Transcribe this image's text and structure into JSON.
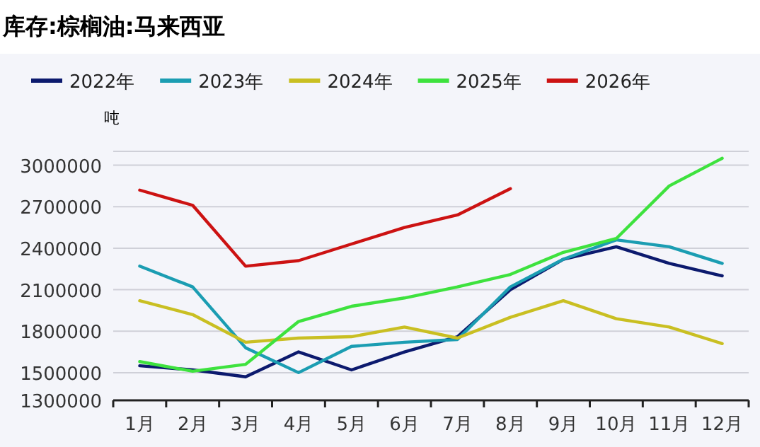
{
  "chart_data": {
    "type": "line",
    "title": "库存:棕榈油:马来西亚",
    "ylabel": "吨",
    "categories": [
      "1月",
      "2月",
      "3月",
      "4月",
      "5月",
      "6月",
      "7月",
      "8月",
      "9月",
      "10月",
      "11月",
      "12月"
    ],
    "series": [
      {
        "name": "2022年",
        "color": "#0c1a6e",
        "values": [
          1550000,
          1520000,
          1470000,
          1650000,
          1520000,
          1650000,
          1760000,
          2100000,
          2320000,
          2410000,
          2290000,
          2200000
        ]
      },
      {
        "name": "2023年",
        "color": "#1b9db2",
        "values": [
          2270000,
          2120000,
          1680000,
          1500000,
          1690000,
          1720000,
          1740000,
          2120000,
          2320000,
          2460000,
          2410000,
          2290000
        ]
      },
      {
        "name": "2024年",
        "color": "#c9bf22",
        "values": [
          2020000,
          1920000,
          1720000,
          1750000,
          1760000,
          1830000,
          1750000,
          1900000,
          2020000,
          1890000,
          1830000,
          1710000
        ]
      },
      {
        "name": "2025年",
        "color": "#3ee23e",
        "values": [
          1580000,
          1510000,
          1560000,
          1870000,
          1980000,
          2040000,
          2120000,
          2210000,
          2370000,
          2470000,
          2850000,
          3050000
        ]
      },
      {
        "name": "2026年",
        "color": "#cc1212",
        "values": [
          2820000,
          2710000,
          2270000,
          2310000,
          2430000,
          2550000,
          2640000,
          2830000,
          null,
          null,
          null,
          null
        ]
      }
    ],
    "ylim": [
      1300000,
      3100000
    ],
    "yticks": [
      1300000,
      1500000,
      1800000,
      2100000,
      2400000,
      2700000,
      3000000,
      {
        "value": 3100000,
        "label": null
      }
    ],
    "grid": "y",
    "legend": "top left",
    "marker": "none",
    "line_style": "solid"
  }
}
